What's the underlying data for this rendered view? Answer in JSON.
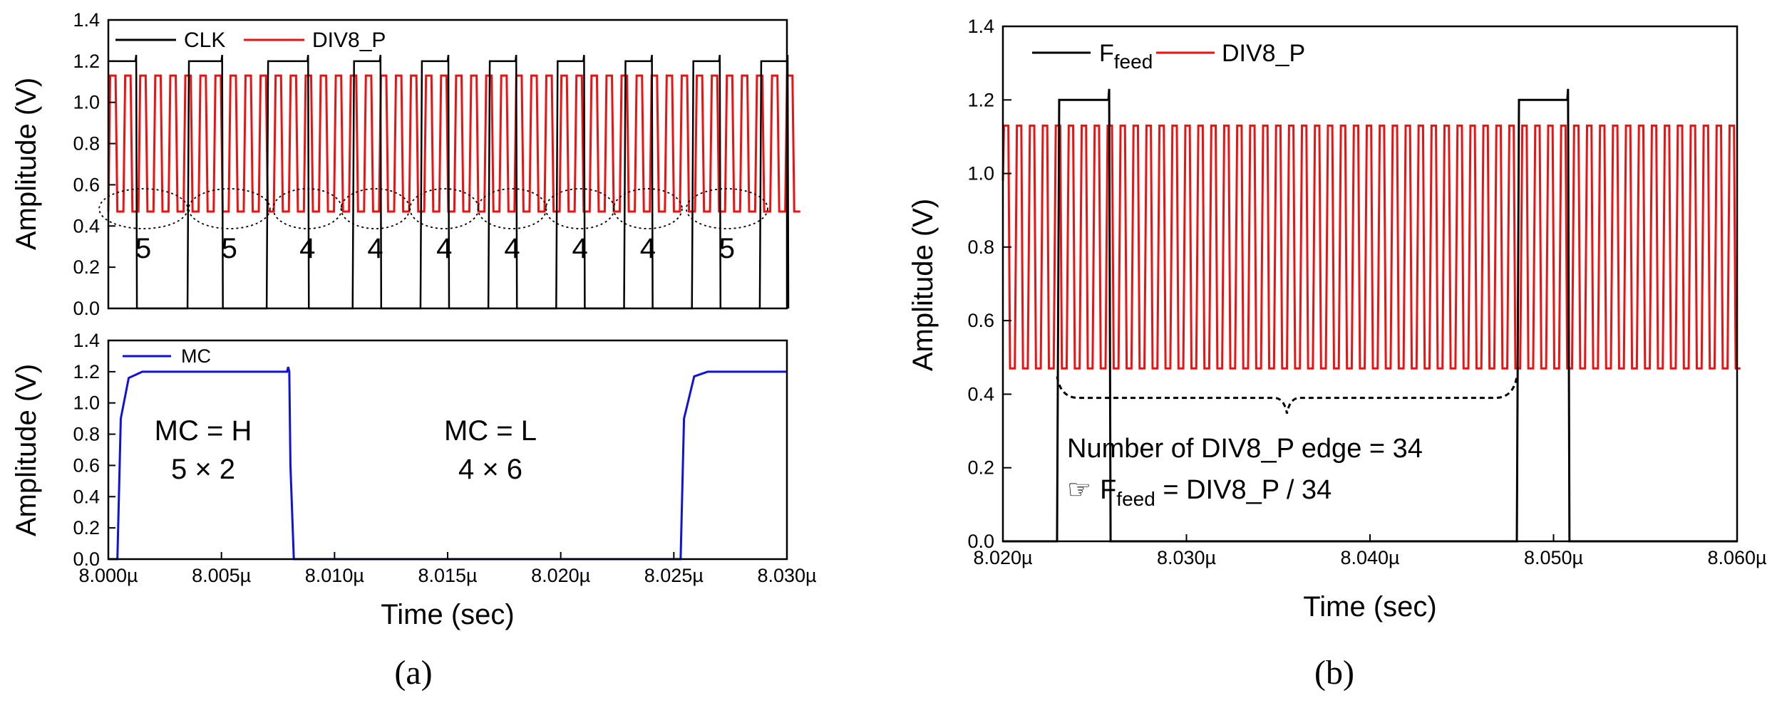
{
  "colors": {
    "black": "#000000",
    "red": "#ee1111",
    "blue": "#1111dd"
  },
  "panel_labels": {
    "a": "(a)",
    "b": "(b)"
  },
  "chart_data": [
    {
      "id": "a-top",
      "type": "line",
      "ylabel": "Amplitude (V)",
      "ylim": [
        0.0,
        1.4
      ],
      "yticks": [
        "0.0",
        "0.2",
        "0.4",
        "0.6",
        "0.8",
        "1.0",
        "1.2",
        "1.4"
      ],
      "legend": {
        "placement": "top-left",
        "entries": [
          "CLK",
          "DIV8_P"
        ]
      },
      "series": [
        {
          "name": "CLK",
          "color": "#000000",
          "high": 1.2,
          "low": 0.0,
          "fall_times_us": [
            8.0012,
            8.005,
            8.0088,
            8.012,
            8.015,
            8.018,
            8.021,
            8.024,
            8.027,
            8.03
          ],
          "rise_times_us": [
            8.0,
            8.0035,
            8.007,
            8.0108,
            8.0138,
            8.0168,
            8.0198,
            8.0228,
            8.0258,
            8.0288
          ],
          "spike_v": 1.23
        },
        {
          "name": "DIV8_P",
          "color": "#ee1111",
          "high": 1.13,
          "low": 0.47,
          "period_us": 0.000665
        }
      ],
      "group_counts": [
        "5",
        "5",
        "4",
        "4",
        "4",
        "4",
        "4",
        "4",
        "5"
      ],
      "group_centers_us": [
        8.00155,
        8.00535,
        8.0088,
        8.0118,
        8.01485,
        8.01785,
        8.02085,
        8.02385,
        8.02735
      ]
    },
    {
      "id": "a-bottom",
      "type": "line",
      "xlabel": "Time (sec)",
      "ylabel": "Amplitude (V)",
      "xlim": [
        8.0,
        8.03
      ],
      "ylim": [
        0.0,
        1.4
      ],
      "xticks": [
        "8.000µ",
        "8.005µ",
        "8.010µ",
        "8.015µ",
        "8.020µ",
        "8.025µ",
        "8.030µ"
      ],
      "yticks": [
        "0.0",
        "0.2",
        "0.4",
        "0.6",
        "0.8",
        "1.0",
        "1.2",
        "1.4"
      ],
      "legend": {
        "placement": "top-left",
        "entries": [
          "MC"
        ]
      },
      "series": [
        {
          "name": "MC",
          "color": "#1111dd",
          "points_us_v": [
            [
              8.0,
              0.0
            ],
            [
              8.0004,
              0.0
            ],
            [
              8.00055,
              0.9
            ],
            [
              8.0009,
              1.16
            ],
            [
              8.0015,
              1.2
            ],
            [
              8.0079,
              1.2
            ],
            [
              8.00795,
              1.23
            ],
            [
              8.008,
              1.2
            ],
            [
              8.00805,
              0.6
            ],
            [
              8.0082,
              0.0
            ],
            [
              8.0253,
              0.0
            ],
            [
              8.02545,
              0.9
            ],
            [
              8.0259,
              1.17
            ],
            [
              8.0265,
              1.2
            ],
            [
              8.03,
              1.2
            ]
          ]
        }
      ],
      "annotations": {
        "mc_high_line1": "MC = H",
        "mc_high_line2": "5 × 2",
        "mc_low_line1": "MC = L",
        "mc_low_line2": "4 × 6"
      }
    },
    {
      "id": "b",
      "type": "line",
      "xlabel": "Time (sec)",
      "ylabel": "Amplitude (V)",
      "xlim": [
        8.02,
        8.06
      ],
      "ylim": [
        0.0,
        1.4
      ],
      "xticks": [
        "8.020µ",
        "8.030µ",
        "8.040µ",
        "8.050µ",
        "8.060µ"
      ],
      "yticks": [
        "0.0",
        "0.2",
        "0.4",
        "0.6",
        "0.8",
        "1.0",
        "1.2",
        "1.4"
      ],
      "legend": {
        "placement": "top-left",
        "entries": [
          {
            "main": "F",
            "subscript": "feed"
          },
          {
            "main": "DIV8_P"
          }
        ]
      },
      "series": [
        {
          "name": "Ffeed",
          "color": "#000000",
          "high": 1.2,
          "low": 0.0,
          "pulses_us": [
            [
              8.02295,
              8.02575
            ],
            [
              8.048,
              8.05075
            ]
          ],
          "spike_v": 1.23
        },
        {
          "name": "DIV8_P",
          "color": "#ee1111",
          "high": 1.13,
          "low": 0.47,
          "period_us": 0.000706
        }
      ],
      "brace_span_us": [
        8.02295,
        8.048
      ],
      "brace_y_v": 0.39,
      "annotations": {
        "count_text": "Number of DIV8_P edge = 34",
        "hand_symbol": "☞",
        "formula_main": "F",
        "formula_sub": "feed",
        "formula_rest": " = DIV8_P / 34"
      }
    }
  ]
}
